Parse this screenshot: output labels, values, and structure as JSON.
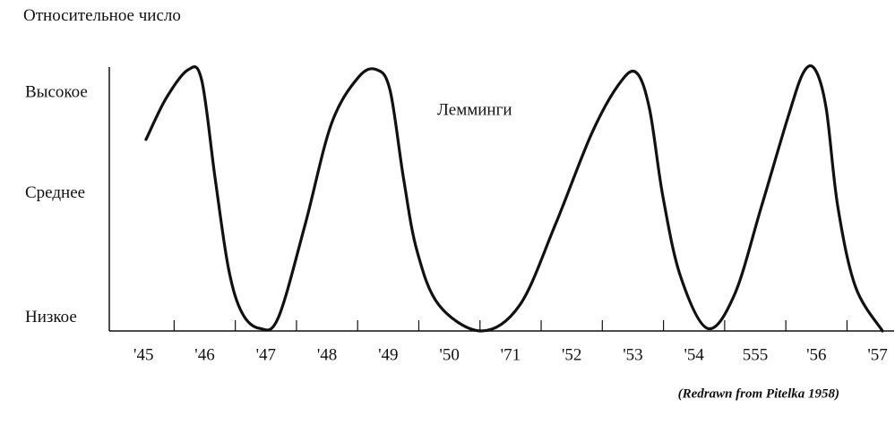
{
  "chart_data": {
    "type": "line",
    "y_label": "Относительное число",
    "caption": "(Redrawn from Pitelka 1958)",
    "categories": [
      "'45",
      "'46",
      "'47",
      "'48",
      "'49",
      "'50",
      "'71",
      "'52",
      "'53",
      "'54",
      "555",
      "'56",
      "'57"
    ],
    "xlim": [
      -0.56,
      12.27
    ],
    "ylim": [
      0,
      102
    ],
    "yticks": [
      {
        "value": 5,
        "label": "Низкое"
      },
      {
        "value": 53,
        "label": "Среднее"
      },
      {
        "value": 92,
        "label": "Высокое"
      }
    ],
    "grid": false,
    "series": [
      {
        "name": "Лемминги",
        "color": "#111111",
        "x": [
          0.04,
          0.37,
          0.73,
          0.95,
          1.17,
          1.39,
          1.61,
          1.9,
          2.2,
          2.64,
          3.07,
          3.51,
          3.81,
          4.03,
          4.25,
          4.47,
          4.83,
          5.52,
          6.15,
          6.73,
          7.32,
          7.76,
          8.05,
          8.27,
          8.49,
          8.78,
          9.22,
          9.66,
          10.1,
          10.54,
          10.79,
          10.98,
          11.16,
          11.35,
          11.64,
          12.08
        ],
        "values": [
          74,
          90,
          101,
          97,
          59,
          24,
          7,
          1,
          5,
          41,
          80,
          98,
          101,
          93,
          59,
          31,
          10,
          0,
          10,
          41,
          76,
          95,
          100,
          86,
          52,
          21,
          1,
          14,
          48,
          83,
          100,
          101,
          86,
          48,
          17,
          0
        ]
      }
    ]
  }
}
